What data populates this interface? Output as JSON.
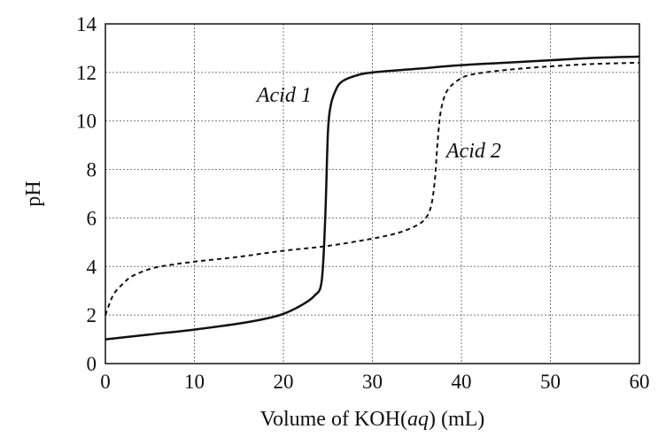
{
  "chart_data": {
    "type": "line",
    "title": "",
    "xlabel": {
      "prefix": "Volume of KOH(",
      "italic": "aq",
      "suffix": ") (mL)"
    },
    "ylabel": "pH",
    "xlim": [
      0,
      60
    ],
    "ylim": [
      0,
      14
    ],
    "xticks": [
      0,
      10,
      20,
      30,
      40,
      50,
      60
    ],
    "yticks": [
      0,
      2,
      4,
      6,
      8,
      10,
      12,
      14
    ],
    "grid": true,
    "series": [
      {
        "name": "Acid 1",
        "style": "solid",
        "color": "#111111",
        "x": [
          0,
          5,
          10,
          15,
          18,
          20,
          22,
          23.5,
          24.3,
          24.7,
          25,
          25.3,
          25.8,
          26.5,
          28,
          30,
          35,
          40,
          45,
          50,
          55,
          60
        ],
        "y": [
          1.0,
          1.2,
          1.4,
          1.65,
          1.85,
          2.05,
          2.4,
          2.8,
          3.4,
          6.0,
          9.5,
          10.6,
          11.2,
          11.6,
          11.85,
          12.0,
          12.15,
          12.3,
          12.4,
          12.5,
          12.6,
          12.65
        ]
      },
      {
        "name": "Acid 2",
        "style": "dashed",
        "color": "#111111",
        "x": [
          0,
          0.5,
          1,
          2,
          3,
          5,
          7,
          10,
          15,
          20,
          25,
          30,
          33,
          35,
          36,
          36.6,
          37,
          37.3,
          37.6,
          38,
          38.5,
          39.5,
          41,
          45,
          50,
          55,
          60
        ],
        "y": [
          2.0,
          2.5,
          2.9,
          3.3,
          3.6,
          3.9,
          4.05,
          4.2,
          4.4,
          4.65,
          4.85,
          5.15,
          5.4,
          5.7,
          6.0,
          6.5,
          7.5,
          9.0,
          10.2,
          10.9,
          11.3,
          11.65,
          11.9,
          12.1,
          12.25,
          12.35,
          12.4
        ]
      }
    ]
  }
}
